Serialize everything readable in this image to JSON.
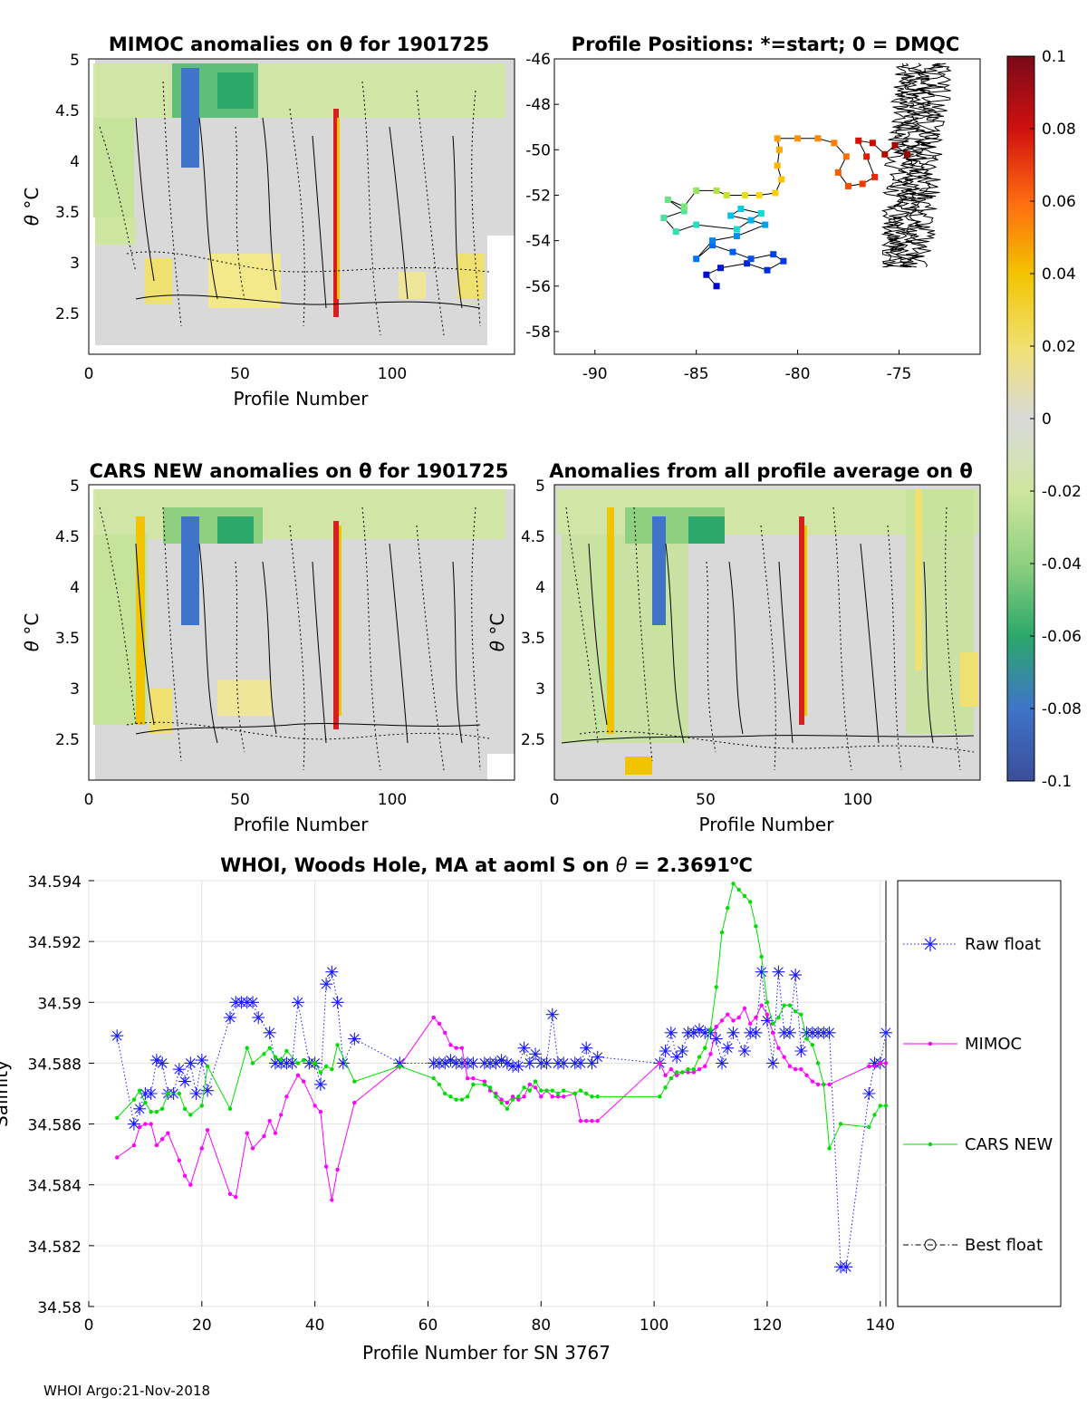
{
  "footer": "WHOI Argo:21-Nov-2018",
  "colorbar": {
    "ticks": [
      "0.1",
      "0.08",
      "0.06",
      "0.04",
      "0.02",
      "0",
      "-0.02",
      "-0.04",
      "-0.06",
      "-0.08",
      "-0.1"
    ],
    "stops": [
      "#7a0a1a",
      "#d01010",
      "#ff6a10",
      "#f2c400",
      "#f0e070",
      "#d9d9d9",
      "#cfe6a0",
      "#8fd080",
      "#2ba86a",
      "#3f74c8",
      "#3b4d9a"
    ]
  },
  "theta_axis": {
    "ylabel_sym": "θ",
    "ylabel_unit": " °C",
    "yticks": [
      "5",
      "4.5",
      "4",
      "3.5",
      "3",
      "2.5"
    ],
    "xticks": [
      "0",
      "50",
      "100"
    ],
    "xlabel": "Profile Number"
  },
  "panels": {
    "mimoc": {
      "title": "MIMOC anomalies on θ  for 1901725"
    },
    "cars": {
      "title": "CARS NEW anomalies on θ for 1901725"
    },
    "allavg": {
      "title": "Anomalies from all profile average on θ"
    }
  },
  "map": {
    "title": "Profile Positions: *=start; 0 = DMQC",
    "xticks": [
      "-90",
      "-85",
      "-80",
      "-75"
    ],
    "yticks": [
      "-46",
      "-48",
      "-50",
      "-52",
      "-54",
      "-56",
      "-58"
    ],
    "xlim": [
      -92,
      -71
    ],
    "ylim": [
      -59,
      -46
    ],
    "track": [
      [
        -84.0,
        -56.0
      ],
      [
        -84.5,
        -55.5
      ],
      [
        -83.8,
        -55.2
      ],
      [
        -82.5,
        -55.0
      ],
      [
        -81.5,
        -55.3
      ],
      [
        -80.7,
        -54.9
      ],
      [
        -81.2,
        -54.6
      ],
      [
        -82.3,
        -54.8
      ],
      [
        -83.2,
        -54.5
      ],
      [
        -84.2,
        -54.2
      ],
      [
        -85.0,
        -54.8
      ],
      [
        -84.2,
        -54.0
      ],
      [
        -83.0,
        -53.8
      ],
      [
        -81.6,
        -53.3
      ],
      [
        -82.3,
        -53.1
      ],
      [
        -83.3,
        -52.9
      ],
      [
        -82.8,
        -52.6
      ],
      [
        -81.8,
        -52.8
      ],
      [
        -83.0,
        -53.5
      ],
      [
        -85.0,
        -53.3
      ],
      [
        -86.0,
        -53.6
      ],
      [
        -86.6,
        -53.0
      ],
      [
        -85.6,
        -52.7
      ],
      [
        -86.4,
        -52.2
      ],
      [
        -85.6,
        -52.5
      ],
      [
        -85.0,
        -51.8
      ],
      [
        -84.0,
        -51.8
      ],
      [
        -83.5,
        -52.0
      ],
      [
        -82.6,
        -52.0
      ],
      [
        -81.9,
        -52.0
      ],
      [
        -81.1,
        -51.9
      ],
      [
        -80.8,
        -51.3
      ],
      [
        -81.0,
        -50.7
      ],
      [
        -80.9,
        -50.0
      ],
      [
        -81.0,
        -49.5
      ],
      [
        -80.0,
        -49.5
      ],
      [
        -79.0,
        -49.5
      ],
      [
        -78.2,
        -49.7
      ],
      [
        -77.6,
        -50.3
      ],
      [
        -78.0,
        -51.0
      ],
      [
        -77.5,
        -51.6
      ],
      [
        -76.8,
        -51.5
      ],
      [
        -76.2,
        -51.2
      ],
      [
        -76.6,
        -50.3
      ],
      [
        -77.0,
        -49.6
      ],
      [
        -76.3,
        -49.7
      ],
      [
        -75.7,
        -50.2
      ],
      [
        -75.2,
        -49.8
      ],
      [
        -74.6,
        -50.2
      ]
    ]
  },
  "chart_data": [
    {
      "type": "heatmap",
      "title": "MIMOC anomalies on θ  for 1901725",
      "xlabel": "Profile Number",
      "ylabel": "θ °C",
      "xlim": [
        0,
        140
      ],
      "ylim": [
        2.1,
        5.0
      ],
      "clim": [
        -0.1,
        0.1
      ]
    },
    {
      "type": "heatmap",
      "title": "CARS NEW anomalies on θ for 1901725",
      "xlabel": "Profile Number",
      "ylabel": "θ °C",
      "xlim": [
        0,
        140
      ],
      "ylim": [
        2.1,
        5.0
      ],
      "clim": [
        -0.1,
        0.1
      ]
    },
    {
      "type": "heatmap",
      "title": "Anomalies from all profile average on θ",
      "xlabel": "Profile Number",
      "ylabel": "θ °C",
      "xlim": [
        0,
        140
      ],
      "ylim": [
        2.1,
        5.0
      ],
      "clim": [
        -0.1,
        0.1
      ]
    },
    {
      "type": "scatter",
      "title": "Profile Positions: *=start; 0 = DMQC",
      "xlim": [
        -92,
        -71
      ],
      "ylim": [
        -59,
        -46
      ]
    },
    {
      "type": "line",
      "title_main": "WHOI, Woods Hole, MA at aoml S on ",
      "title_sym": "θ",
      "title_val": " = 2.3691",
      "title_unit": "o",
      "title_end": "C",
      "xlabel": "Profile Number for SN 3767",
      "ylabel": "Salinity",
      "xlim": [
        0,
        141
      ],
      "ylim": [
        34.58,
        34.594
      ],
      "xticks": [
        "0",
        "20",
        "40",
        "60",
        "80",
        "100",
        "120",
        "140"
      ],
      "yticks": [
        "34.594",
        "34.592",
        "34.59",
        "34.588",
        "34.586",
        "34.584",
        "34.582",
        "34.58"
      ],
      "legend_items": [
        "Raw float",
        "MIMOC",
        "CARS NEW",
        "Best float"
      ],
      "series": [
        {
          "name": "Raw float",
          "color": "#1a1aff",
          "x": [
            5,
            8,
            9,
            10,
            11,
            12,
            13,
            14,
            15,
            16,
            17,
            18,
            19,
            20,
            21,
            25,
            26,
            27,
            28,
            29,
            30,
            32,
            33,
            34,
            35,
            36,
            37,
            39,
            40,
            41,
            42,
            43,
            44,
            45,
            47,
            55,
            61,
            62,
            63,
            64,
            65,
            66,
            67,
            68,
            70,
            71,
            72,
            73,
            74,
            75,
            76,
            77,
            78,
            79,
            80,
            81,
            82,
            83,
            84,
            86,
            87,
            88,
            89,
            90,
            101,
            102,
            103,
            104,
            105,
            106,
            107,
            108,
            109,
            110,
            111,
            112,
            113,
            114,
            116,
            117,
            118,
            119,
            120,
            121,
            122,
            123,
            124,
            125,
            126,
            127,
            128,
            129,
            130,
            131,
            133,
            134,
            138,
            139,
            140,
            141
          ],
          "y": [
            34.5889,
            34.586,
            34.5865,
            34.587,
            34.587,
            34.5881,
            34.588,
            34.587,
            34.587,
            34.5878,
            34.5874,
            34.588,
            34.587,
            34.5881,
            34.5871,
            34.5895,
            34.59,
            34.59,
            34.59,
            34.59,
            34.5895,
            34.589,
            34.588,
            34.588,
            34.588,
            34.588,
            34.59,
            34.588,
            34.588,
            34.5873,
            34.5906,
            34.591,
            34.59,
            34.588,
            34.5888,
            34.588,
            34.588,
            34.588,
            34.588,
            34.5881,
            34.588,
            34.588,
            34.588,
            34.588,
            34.588,
            34.588,
            34.588,
            34.5881,
            34.588,
            34.5879,
            34.5879,
            34.5885,
            34.588,
            34.5883,
            34.588,
            34.588,
            34.5896,
            34.588,
            34.588,
            34.588,
            34.588,
            34.5885,
            34.588,
            34.5882,
            34.588,
            34.5884,
            34.589,
            34.5882,
            34.5884,
            34.589,
            34.589,
            34.5891,
            34.589,
            34.589,
            34.5888,
            34.588,
            34.5885,
            34.589,
            34.5884,
            34.589,
            34.589,
            34.591,
            34.5894,
            34.588,
            34.591,
            34.589,
            34.589,
            34.5909,
            34.5884,
            34.589,
            34.589,
            34.589,
            34.589,
            34.589,
            34.5813,
            34.5813,
            34.587,
            34.588,
            34.588,
            34.589
          ]
        },
        {
          "name": "MIMOC",
          "color": "#ff00ff",
          "x": [
            5,
            8,
            9,
            10,
            11,
            12,
            13,
            14,
            16,
            17,
            18,
            20,
            21,
            25,
            26,
            28,
            29,
            31,
            32,
            33,
            34,
            35,
            37,
            38,
            40,
            41,
            42,
            43,
            44,
            47,
            55,
            61,
            62,
            63,
            64,
            65,
            66,
            67,
            68,
            70,
            71,
            72,
            73,
            74,
            75,
            76,
            77,
            78,
            79,
            80,
            81,
            82,
            83,
            84,
            86,
            87,
            88,
            89,
            90,
            101,
            102,
            103,
            104,
            105,
            106,
            107,
            108,
            109,
            110,
            111,
            112,
            113,
            114,
            115,
            116,
            117,
            118,
            119,
            120,
            121,
            122,
            123,
            124,
            125,
            126,
            127,
            128,
            129,
            130,
            131,
            138,
            139,
            140,
            141
          ],
          "y": [
            34.5849,
            34.5853,
            34.5859,
            34.586,
            34.586,
            34.5853,
            34.5855,
            34.5857,
            34.5848,
            34.5843,
            34.584,
            34.5852,
            34.5858,
            34.5837,
            34.5836,
            34.5857,
            34.5852,
            34.5856,
            34.5861,
            34.5857,
            34.5863,
            34.5869,
            34.5876,
            34.5874,
            34.5866,
            34.5864,
            34.5846,
            34.5835,
            34.5845,
            34.5867,
            34.5879,
            34.5895,
            34.5893,
            34.589,
            34.5886,
            34.5885,
            34.5885,
            34.5875,
            34.5875,
            34.5874,
            34.5871,
            34.587,
            34.5868,
            34.5867,
            34.5869,
            34.5868,
            34.5869,
            34.5873,
            34.5872,
            34.5869,
            34.5871,
            34.5869,
            34.5869,
            34.5869,
            34.587,
            34.5861,
            34.5861,
            34.5861,
            34.5861,
            34.588,
            34.5876,
            34.5878,
            34.5876,
            34.5877,
            34.5877,
            34.5877,
            34.5878,
            34.5879,
            34.5883,
            34.5892,
            34.5894,
            34.5896,
            34.5894,
            34.5895,
            34.5898,
            34.5893,
            34.5895,
            34.5899,
            34.5896,
            34.589,
            34.5885,
            34.5882,
            34.5879,
            34.5878,
            34.5878,
            34.5876,
            34.5874,
            34.5873,
            34.5873,
            34.5873,
            34.5879,
            34.5879,
            34.588,
            34.588
          ]
        },
        {
          "name": "CARS NEW",
          "color": "#00dd00",
          "x": [
            5,
            8,
            9,
            10,
            11,
            12,
            13,
            14,
            16,
            17,
            18,
            20,
            21,
            25,
            28,
            29,
            31,
            32,
            33,
            34,
            35,
            37,
            38,
            40,
            41,
            42,
            43,
            44,
            47,
            55,
            61,
            62,
            63,
            64,
            65,
            66,
            67,
            68,
            70,
            71,
            72,
            73,
            74,
            75,
            76,
            77,
            78,
            79,
            80,
            81,
            82,
            83,
            84,
            86,
            87,
            88,
            89,
            90,
            101,
            102,
            103,
            104,
            105,
            106,
            107,
            108,
            109,
            110,
            111,
            112,
            113,
            114,
            115,
            116,
            117,
            118,
            119,
            120,
            121,
            122,
            123,
            124,
            125,
            126,
            127,
            128,
            129,
            130,
            131,
            133,
            138,
            139,
            140,
            141
          ],
          "y": [
            34.5862,
            34.5868,
            34.5871,
            34.5867,
            34.5864,
            34.5864,
            34.5865,
            34.587,
            34.587,
            34.5865,
            34.5863,
            34.5866,
            34.5879,
            34.5865,
            34.5885,
            34.588,
            34.5883,
            34.5885,
            34.5882,
            34.5881,
            34.5884,
            34.588,
            34.5881,
            34.588,
            34.5877,
            34.5879,
            34.5878,
            34.5886,
            34.5874,
            34.5879,
            34.5875,
            34.5873,
            34.587,
            34.5869,
            34.5868,
            34.5868,
            34.5869,
            34.5873,
            34.5873,
            34.5872,
            34.5869,
            34.5867,
            34.5865,
            34.5868,
            34.5869,
            34.5872,
            34.5871,
            34.5874,
            34.5871,
            34.5871,
            34.5871,
            34.587,
            34.5871,
            34.587,
            34.5871,
            34.587,
            34.5869,
            34.5869,
            34.5869,
            34.5872,
            34.5875,
            34.5877,
            34.5877,
            34.5878,
            34.5878,
            34.5882,
            34.5885,
            34.5891,
            34.5905,
            34.5923,
            34.5931,
            34.5939,
            34.5937,
            34.5935,
            34.5933,
            34.5925,
            34.5915,
            34.59,
            34.5893,
            34.5895,
            34.5899,
            34.5899,
            34.5897,
            34.5896,
            34.5888,
            34.5886,
            34.588,
            34.5873,
            34.5852,
            34.586,
            34.5859,
            34.5863,
            34.5866,
            34.5866
          ]
        },
        {
          "name": "Best float",
          "color": "#000000",
          "x": [],
          "y": []
        }
      ]
    }
  ]
}
